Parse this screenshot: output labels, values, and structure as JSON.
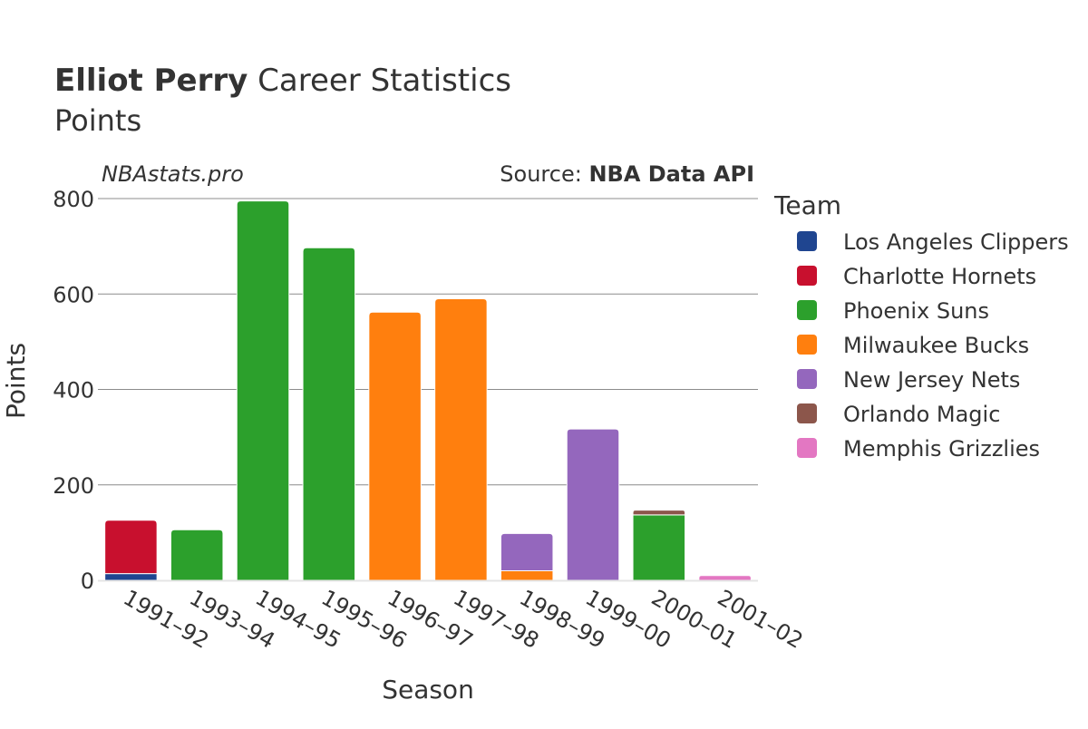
{
  "header": {
    "title_bold": "Elliot Perry",
    "title_rest": " Career Statistics",
    "subtitle": "Points",
    "watermark": "NBAstats.pro",
    "source_prefix": "Source: ",
    "source_name": "NBA Data API"
  },
  "chart_data": {
    "type": "bar",
    "stacked": true,
    "xlabel": "Season",
    "ylabel": "Points",
    "ylim": [
      0,
      800
    ],
    "yticks": [
      0,
      200,
      400,
      600,
      800
    ],
    "grid": true,
    "legend_title": "Team",
    "legend_position": "right",
    "categories": [
      "1991–92",
      "1993–94",
      "1994–95",
      "1995–96",
      "1996–97",
      "1997–98",
      "1998–99",
      "1999–00",
      "2000–01",
      "2001–02"
    ],
    "series": [
      {
        "name": "Los Angeles Clippers",
        "color": "#1f4590",
        "values": [
          14,
          0,
          0,
          0,
          0,
          0,
          0,
          0,
          0,
          0
        ]
      },
      {
        "name": "Charlotte Hornets",
        "color": "#c8102e",
        "values": [
          112,
          0,
          0,
          0,
          0,
          0,
          0,
          0,
          0,
          0
        ]
      },
      {
        "name": "Phoenix Suns",
        "color": "#2ca02c",
        "values": [
          0,
          106,
          795,
          697,
          0,
          0,
          0,
          0,
          137,
          0
        ]
      },
      {
        "name": "Milwaukee Bucks",
        "color": "#ff7f0e",
        "values": [
          0,
          0,
          0,
          0,
          562,
          590,
          20,
          0,
          0,
          0
        ]
      },
      {
        "name": "New Jersey Nets",
        "color": "#9467bd",
        "values": [
          0,
          0,
          0,
          0,
          0,
          0,
          78,
          317,
          0,
          0
        ]
      },
      {
        "name": "Orlando Magic",
        "color": "#8c564b",
        "values": [
          0,
          0,
          0,
          0,
          0,
          0,
          0,
          0,
          10,
          0
        ]
      },
      {
        "name": "Memphis Grizzlies",
        "color": "#e377c2",
        "values": [
          0,
          0,
          0,
          0,
          0,
          0,
          0,
          0,
          0,
          10
        ]
      }
    ]
  }
}
